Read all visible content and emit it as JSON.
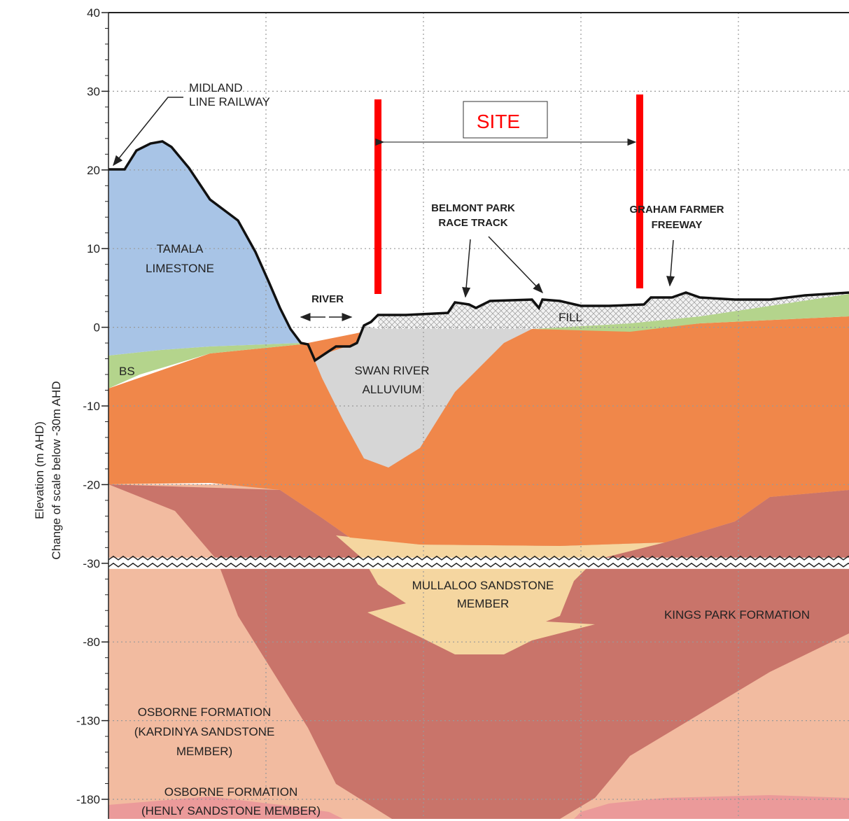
{
  "axis": {
    "title": [
      "Elevation (m AHD)",
      "Change of scale below -30m AHD"
    ],
    "ticks": [
      "40",
      "30",
      "20",
      "10",
      "0",
      "-10",
      "-20",
      "-30",
      "-80",
      "-130",
      "-180"
    ]
  },
  "site": {
    "label": "SITE"
  },
  "labels": {
    "railway": [
      "MIDLAND",
      "LINE RAILWAY"
    ],
    "tamala": [
      "TAMALA",
      "LIMESTONE"
    ],
    "river": [
      "RIVER"
    ],
    "bs": [
      "BS"
    ],
    "alluvium": [
      "SWAN RIVER",
      "ALLUVIUM"
    ],
    "racetrack": [
      "BELMONT PARK",
      "RACE TRACK"
    ],
    "freeway": [
      "GRAHAM FARMER",
      "FREEWAY"
    ],
    "fill": [
      "FILL"
    ],
    "mullaloo": [
      "MULLALOO SANDSTONE",
      "MEMBER"
    ],
    "kingspark": [
      "KINGS PARK FORMATION"
    ],
    "kardinya": [
      "OSBORNE FORMATION",
      "(KARDINYA SANDSTONE",
      "MEMBER)"
    ],
    "henly": [
      "OSBORNE FORMATION",
      "(HENLY SANDSTONE MEMBER)"
    ]
  }
}
